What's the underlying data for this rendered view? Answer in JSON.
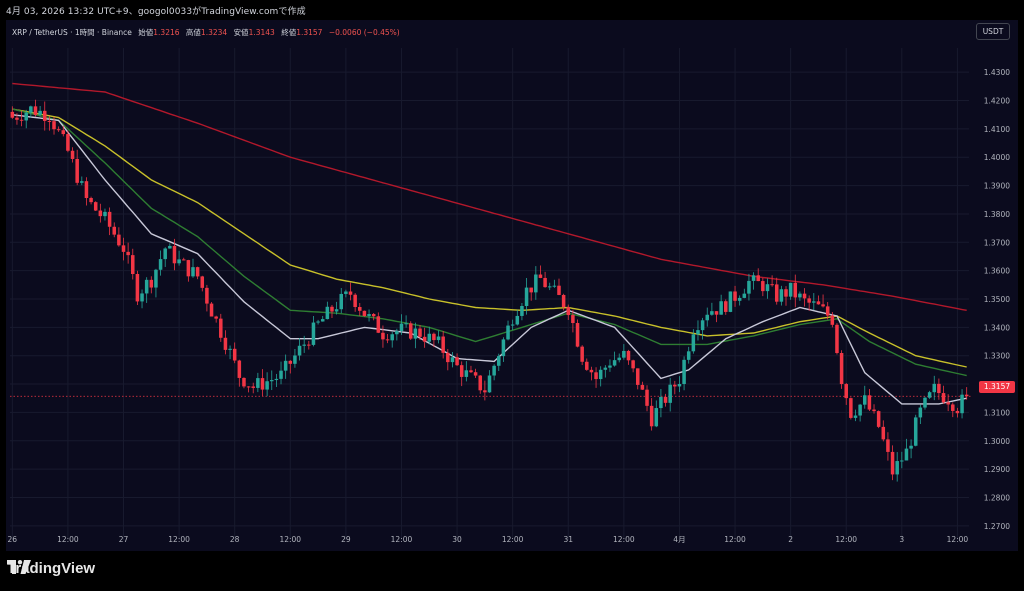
{
  "credit": "4月 03, 2026 13:32 UTC+9、googol0033がTradingView.comで作成",
  "header": {
    "symbol": "XRP / TetherUS · 1時間 · Binance",
    "open_label": "始値",
    "open": "1.3216",
    "high_label": "高値",
    "high": "1.3234",
    "low_label": "安値",
    "low": "1.3143",
    "close_label": "終値",
    "close": "1.3157",
    "change": "−0.0060 (−0.45%)"
  },
  "unit_button": "USDT",
  "last_price_tag": "1.3157",
  "brand": {
    "name": "TradingView",
    "logo_icon": "tradingview-logo-icon"
  },
  "colors": {
    "up": "#26a69a",
    "down": "#f23645",
    "ma_red": "#b2182b",
    "ma_yellow": "#c8c02a",
    "ma_green": "#2e7d32",
    "ma_white": "#c8c8d8",
    "background": "#0b0b1e"
  },
  "chart_data": {
    "type": "candlestick",
    "timeframe": "1h",
    "ylim": [
      1.265,
      1.435
    ],
    "y_ticks": [
      "1.4300",
      "1.4200",
      "1.4100",
      "1.4000",
      "1.3900",
      "1.3800",
      "1.3700",
      "1.3600",
      "1.3500",
      "1.3400",
      "1.3300",
      "1.3200",
      "1.3100",
      "1.3000",
      "1.2900",
      "1.2800",
      "1.2700"
    ],
    "x_labels": [
      {
        "i": 0,
        "label": "26"
      },
      {
        "i": 12,
        "label": "12:00"
      },
      {
        "i": 24,
        "label": "27"
      },
      {
        "i": 36,
        "label": "12:00"
      },
      {
        "i": 48,
        "label": "28"
      },
      {
        "i": 60,
        "label": "12:00"
      },
      {
        "i": 72,
        "label": "29"
      },
      {
        "i": 84,
        "label": "12:00"
      },
      {
        "i": 96,
        "label": "30"
      },
      {
        "i": 108,
        "label": "12:00"
      },
      {
        "i": 120,
        "label": "31"
      },
      {
        "i": 132,
        "label": "12:00"
      },
      {
        "i": 144,
        "label": "4月"
      },
      {
        "i": 156,
        "label": "12:00"
      },
      {
        "i": 168,
        "label": "2"
      },
      {
        "i": 180,
        "label": "12:00"
      },
      {
        "i": 192,
        "label": "3"
      },
      {
        "i": 204,
        "label": "12:00"
      }
    ],
    "close_anchors": [
      [
        0,
        1.414
      ],
      [
        4,
        1.417
      ],
      [
        8,
        1.415
      ],
      [
        12,
        1.402
      ],
      [
        16,
        1.385
      ],
      [
        20,
        1.378
      ],
      [
        24,
        1.368
      ],
      [
        27,
        1.352
      ],
      [
        30,
        1.357
      ],
      [
        33,
        1.368
      ],
      [
        36,
        1.363
      ],
      [
        40,
        1.358
      ],
      [
        43,
        1.346
      ],
      [
        46,
        1.335
      ],
      [
        49,
        1.323
      ],
      [
        52,
        1.319
      ],
      [
        55,
        1.321
      ],
      [
        58,
        1.323
      ],
      [
        62,
        1.332
      ],
      [
        66,
        1.341
      ],
      [
        70,
        1.348
      ],
      [
        73,
        1.352
      ],
      [
        76,
        1.345
      ],
      [
        80,
        1.338
      ],
      [
        84,
        1.339
      ],
      [
        88,
        1.338
      ],
      [
        92,
        1.334
      ],
      [
        96,
        1.326
      ],
      [
        99,
        1.322
      ],
      [
        102,
        1.318
      ],
      [
        105,
        1.331
      ],
      [
        108,
        1.344
      ],
      [
        111,
        1.353
      ],
      [
        114,
        1.357
      ],
      [
        117,
        1.352
      ],
      [
        120,
        1.347
      ],
      [
        123,
        1.33
      ],
      [
        126,
        1.322
      ],
      [
        129,
        1.328
      ],
      [
        132,
        1.33
      ],
      [
        135,
        1.321
      ],
      [
        138,
        1.308
      ],
      [
        141,
        1.315
      ],
      [
        144,
        1.322
      ],
      [
        147,
        1.34
      ],
      [
        150,
        1.346
      ],
      [
        153,
        1.347
      ],
      [
        156,
        1.351
      ],
      [
        159,
        1.356
      ],
      [
        162,
        1.355
      ],
      [
        165,
        1.351
      ],
      [
        168,
        1.353
      ],
      [
        171,
        1.349
      ],
      [
        174,
        1.347
      ],
      [
        177,
        1.343
      ],
      [
        179,
        1.322
      ],
      [
        181,
        1.31
      ],
      [
        184,
        1.314
      ],
      [
        187,
        1.305
      ],
      [
        190,
        1.289
      ],
      [
        193,
        1.296
      ],
      [
        196,
        1.31
      ],
      [
        199,
        1.318
      ],
      [
        202,
        1.315
      ],
      [
        204,
        1.312
      ],
      [
        206,
        1.3157
      ]
    ],
    "moving_averages": [
      {
        "color": "ma_red",
        "points": [
          [
            0,
            1.426
          ],
          [
            20,
            1.423
          ],
          [
            40,
            1.412
          ],
          [
            60,
            1.4
          ],
          [
            80,
            1.391
          ],
          [
            100,
            1.382
          ],
          [
            120,
            1.373
          ],
          [
            140,
            1.364
          ],
          [
            160,
            1.358
          ],
          [
            175,
            1.355
          ],
          [
            190,
            1.351
          ],
          [
            206,
            1.346
          ]
        ]
      },
      {
        "color": "ma_yellow",
        "points": [
          [
            0,
            1.417
          ],
          [
            10,
            1.414
          ],
          [
            20,
            1.404
          ],
          [
            30,
            1.392
          ],
          [
            40,
            1.384
          ],
          [
            50,
            1.373
          ],
          [
            60,
            1.362
          ],
          [
            70,
            1.357
          ],
          [
            80,
            1.354
          ],
          [
            90,
            1.35
          ],
          [
            100,
            1.347
          ],
          [
            110,
            1.346
          ],
          [
            120,
            1.347
          ],
          [
            130,
            1.344
          ],
          [
            140,
            1.34
          ],
          [
            150,
            1.337
          ],
          [
            160,
            1.338
          ],
          [
            170,
            1.342
          ],
          [
            178,
            1.344
          ],
          [
            185,
            1.338
          ],
          [
            195,
            1.33
          ],
          [
            206,
            1.326
          ]
        ]
      },
      {
        "color": "ma_green",
        "points": [
          [
            0,
            1.417
          ],
          [
            10,
            1.413
          ],
          [
            20,
            1.398
          ],
          [
            30,
            1.382
          ],
          [
            40,
            1.372
          ],
          [
            50,
            1.358
          ],
          [
            60,
            1.346
          ],
          [
            70,
            1.345
          ],
          [
            80,
            1.343
          ],
          [
            90,
            1.34
          ],
          [
            100,
            1.335
          ],
          [
            110,
            1.34
          ],
          [
            120,
            1.345
          ],
          [
            130,
            1.341
          ],
          [
            140,
            1.334
          ],
          [
            150,
            1.334
          ],
          [
            160,
            1.337
          ],
          [
            170,
            1.341
          ],
          [
            178,
            1.343
          ],
          [
            185,
            1.335
          ],
          [
            195,
            1.327
          ],
          [
            206,
            1.323
          ]
        ]
      },
      {
        "color": "ma_white",
        "points": [
          [
            0,
            1.415
          ],
          [
            10,
            1.413
          ],
          [
            20,
            1.392
          ],
          [
            30,
            1.373
          ],
          [
            40,
            1.366
          ],
          [
            50,
            1.349
          ],
          [
            60,
            1.336
          ],
          [
            66,
            1.336
          ],
          [
            76,
            1.34
          ],
          [
            86,
            1.338
          ],
          [
            96,
            1.329
          ],
          [
            104,
            1.328
          ],
          [
            112,
            1.34
          ],
          [
            120,
            1.346
          ],
          [
            130,
            1.34
          ],
          [
            140,
            1.322
          ],
          [
            146,
            1.325
          ],
          [
            154,
            1.336
          ],
          [
            162,
            1.342
          ],
          [
            170,
            1.347
          ],
          [
            178,
            1.344
          ],
          [
            184,
            1.324
          ],
          [
            192,
            1.313
          ],
          [
            200,
            1.313
          ],
          [
            206,
            1.315
          ]
        ]
      }
    ]
  }
}
